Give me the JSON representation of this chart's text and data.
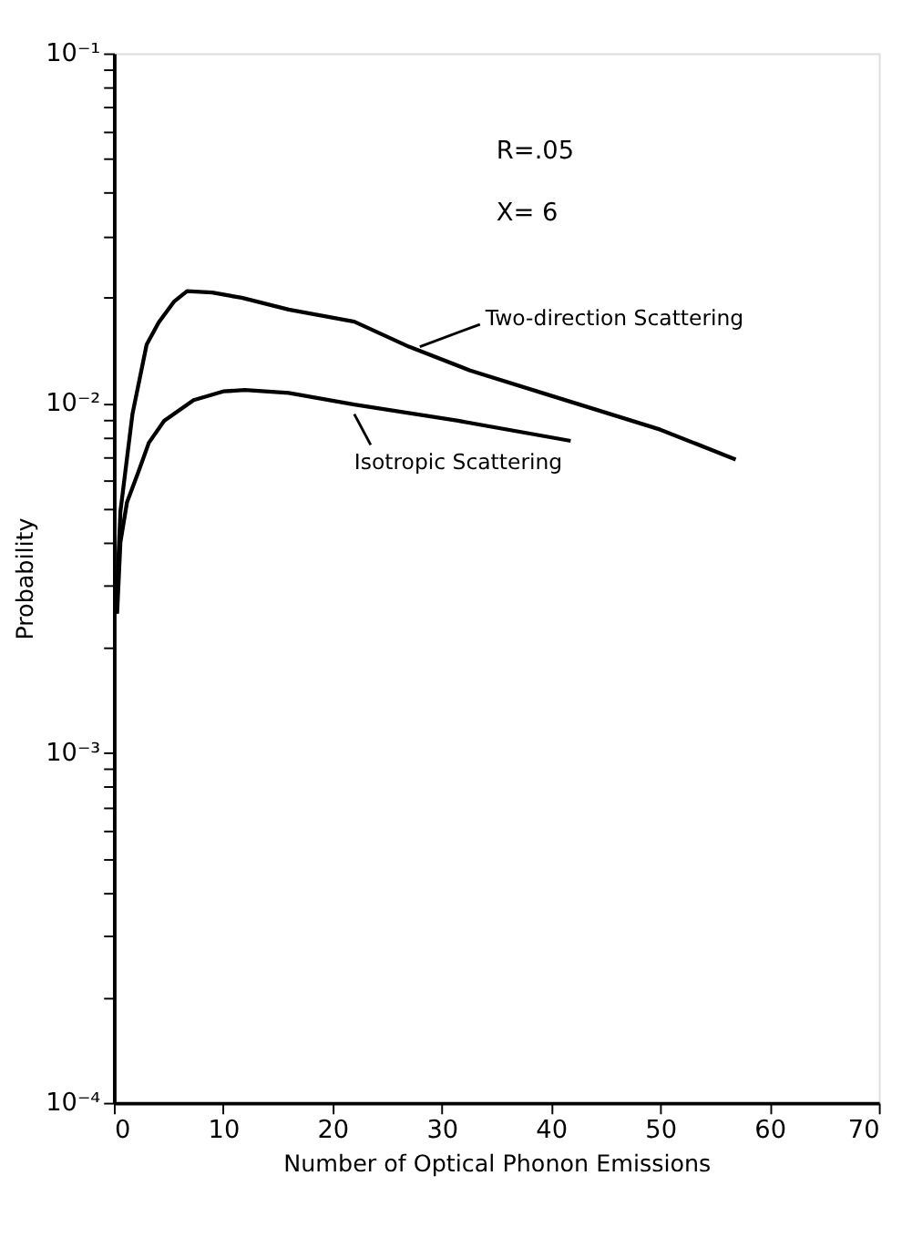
{
  "chart_data": {
    "type": "line",
    "xlabel": "Number of Optical Phonon Emissions",
    "ylabel": "Probability",
    "log": "y",
    "grid": false,
    "marker": "none",
    "line_style": "solid",
    "xlim": [
      0,
      70
    ],
    "xticks": [
      0,
      10,
      20,
      30,
      40,
      50,
      60,
      70
    ],
    "ylim": [
      0.0001,
      0.1
    ],
    "yticks": [
      {
        "value": 0.0001,
        "label": "10⁻⁴"
      },
      {
        "value": 0.0002,
        "label": null
      },
      {
        "value": 0.0003,
        "label": null
      },
      {
        "value": 0.0004,
        "label": null
      },
      {
        "value": 0.0005,
        "label": null
      },
      {
        "value": 0.0006,
        "label": null
      },
      {
        "value": 0.0007,
        "label": null
      },
      {
        "value": 0.0008,
        "label": null
      },
      {
        "value": 0.0009,
        "label": null
      },
      {
        "value": 0.001,
        "label": "10⁻³"
      },
      {
        "value": 0.002,
        "label": null
      },
      {
        "value": 0.003,
        "label": null
      },
      {
        "value": 0.004,
        "label": null
      },
      {
        "value": 0.005,
        "label": null
      },
      {
        "value": 0.006,
        "label": null
      },
      {
        "value": 0.007,
        "label": null
      },
      {
        "value": 0.008,
        "label": null
      },
      {
        "value": 0.009,
        "label": null
      },
      {
        "value": 0.01,
        "label": "10⁻²"
      },
      {
        "value": 0.02,
        "label": null
      },
      {
        "value": 0.03,
        "label": null
      },
      {
        "value": 0.04,
        "label": null
      },
      {
        "value": 0.05,
        "label": null
      },
      {
        "value": 0.06,
        "label": null
      },
      {
        "value": 0.07,
        "label": null
      },
      {
        "value": 0.08,
        "label": null
      },
      {
        "value": 0.09,
        "label": null
      },
      {
        "value": 0.1,
        "label": "10⁻¹"
      }
    ],
    "series": [
      {
        "name": "Two-direction Scattering",
        "color": "#000000",
        "x": [
          0.2,
          0.6,
          1.7,
          3.0,
          4.1,
          5.5,
          6.7,
          9,
          11.7,
          16,
          22,
          27,
          32.6,
          40,
          50,
          56.9
        ],
        "values": [
          0.0025,
          0.0049,
          0.0093,
          0.0147,
          0.017,
          0.0195,
          0.0209,
          0.0207,
          0.02,
          0.0185,
          0.0171,
          0.0145,
          0.0124,
          0.0105,
          0.0084,
          0.0069
        ]
      },
      {
        "name": "Isotropic Scattering",
        "color": "#000000",
        "x": [
          0.3,
          0.6,
          1.2,
          2.2,
          3.2,
          4.6,
          7.3,
          10,
          12,
          16,
          22,
          31.5,
          41.8
        ],
        "values": [
          0.0025,
          0.004,
          0.0052,
          0.0063,
          0.0077,
          0.0089,
          0.0102,
          0.0108,
          0.0109,
          0.0107,
          0.0099,
          0.0089,
          0.0078
        ]
      }
    ],
    "annotations": [
      "R=.05",
      "X= 6"
    ]
  }
}
